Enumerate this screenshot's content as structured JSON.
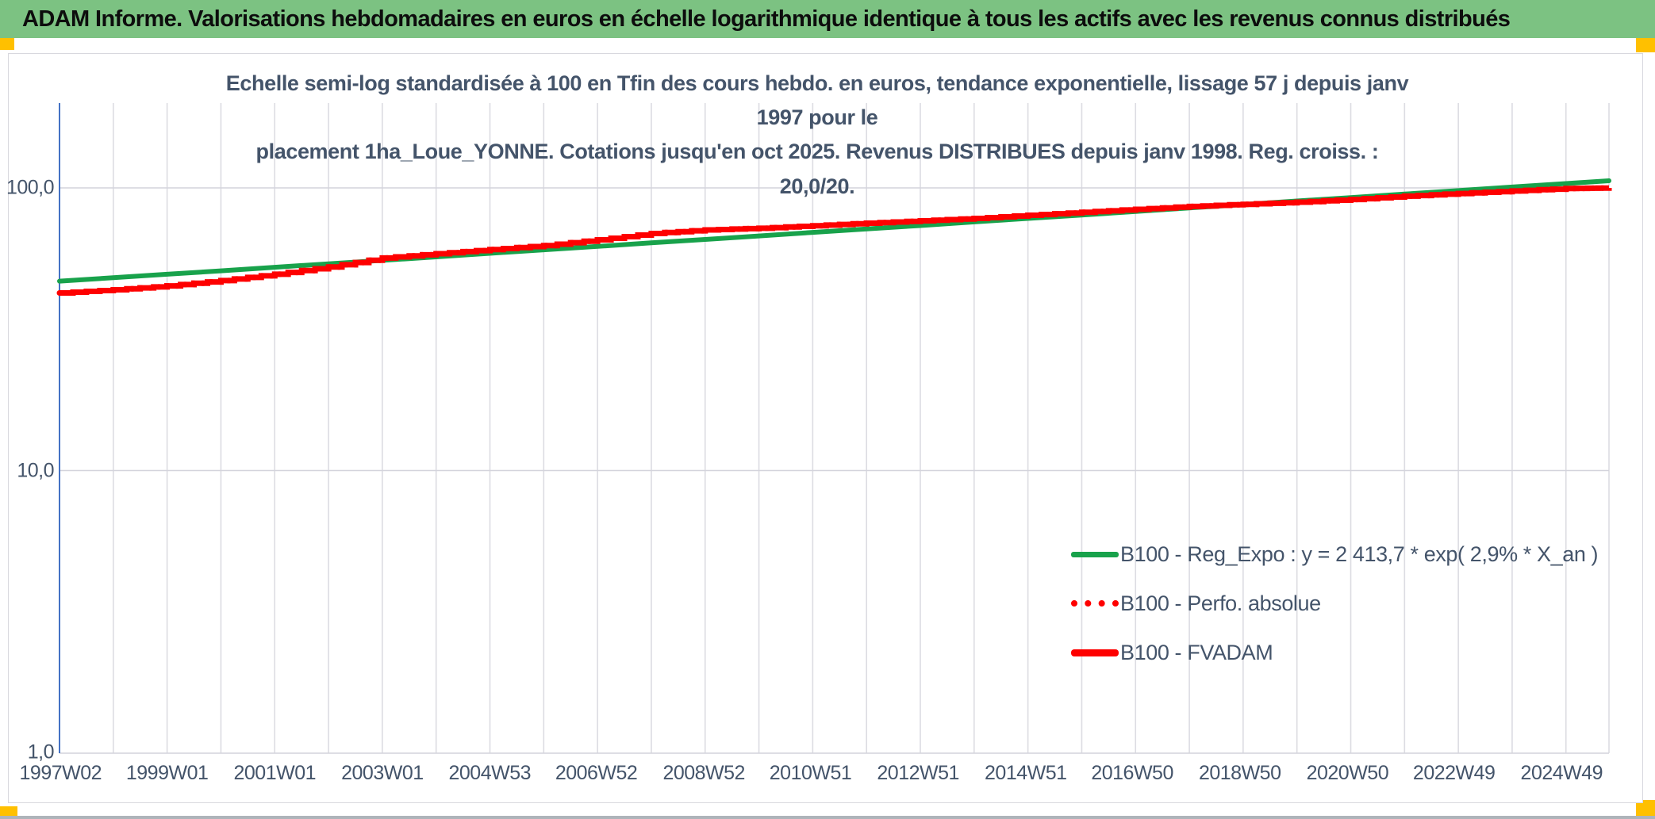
{
  "header": {
    "title": "ADAM Informe. Valorisations hebdomadaires en euros en échelle logarithmique identique à tous les actifs avec les revenus connus distribués"
  },
  "chart_data": {
    "type": "line",
    "title_lines": [
      "Echelle semi-log standardisée à 100 en Tfin des cours hebdo. en euros, tendance exponentielle, lissage 57 j depuis janv 1997 pour le",
      "placement 1ha_Loue_YONNE. Cotations jusqu'en oct 2025. Revenus DISTRIBUES depuis janv 1998. Reg. croiss. : 20,0/20."
    ],
    "y_scale": "log",
    "ylim": [
      1,
      200
    ],
    "y_tick_labels": [
      "100,0",
      "10,0",
      "1,0"
    ],
    "y_tick_values": [
      100.0,
      10.0,
      1.0
    ],
    "x_tick_labels": [
      "1997W02",
      "1999W01",
      "2001W01",
      "2003W01",
      "2004W53",
      "2006W52",
      "2008W52",
      "2010W51",
      "2012W51",
      "2014W51",
      "2016W50",
      "2018W50",
      "2020W50",
      "2022W49",
      "2024W49"
    ],
    "x_range_years": [
      1997.0,
      2025.8
    ],
    "grid": "vertical-yearly, horizontal-decades",
    "legend_position": "inside-bottom-right",
    "x_years": [
      1997,
      1998,
      1999,
      2000,
      2001,
      2002,
      2003,
      2004,
      2005,
      2006,
      2007,
      2008,
      2009,
      2010,
      2011,
      2012,
      2013,
      2014,
      2015,
      2016,
      2017,
      2018,
      2019,
      2020,
      2021,
      2022,
      2023,
      2024,
      2025,
      2025.8
    ],
    "series": [
      {
        "name": "B100 - Reg_Expo : y = 2 413,7 * exp( 2,9% *  X_an )",
        "color": "#18A24B",
        "style": "solid",
        "width": 6,
        "values": [
          46.8,
          48.1,
          49.5,
          50.9,
          52.4,
          53.9,
          55.4,
          57.0,
          58.7,
          60.4,
          62.1,
          63.9,
          65.7,
          67.6,
          69.6,
          71.6,
          73.6,
          75.8,
          78.0,
          80.2,
          82.5,
          84.9,
          87.3,
          89.9,
          92.4,
          95.1,
          97.8,
          100.7,
          103.6,
          106.0
        ]
      },
      {
        "name": "B100 - Perfo. absolue",
        "color": "#FE0000",
        "style": "dotted-step",
        "width": 7,
        "values": [
          42.5,
          43.6,
          45.0,
          47.0,
          49.5,
          52.5,
          56.5,
          58.5,
          60.5,
          62.5,
          65.5,
          69.0,
          71.0,
          72.0,
          73.5,
          75.0,
          76.5,
          78.0,
          80.0,
          82.0,
          84.0,
          86.0,
          87.5,
          89.0,
          91.0,
          93.5,
          95.5,
          97.5,
          99.5,
          100.0
        ]
      },
      {
        "name": "B100 - FVADAM",
        "color": "#FE0000",
        "style": "solid-step",
        "width": 7,
        "values": [
          42.5,
          43.6,
          45.0,
          47.0,
          49.5,
          52.5,
          56.5,
          58.5,
          60.5,
          62.5,
          65.5,
          69.0,
          71.0,
          72.0,
          73.5,
          75.0,
          76.5,
          78.0,
          80.0,
          82.0,
          84.0,
          86.0,
          87.5,
          89.0,
          91.0,
          93.5,
          95.5,
          97.5,
          99.5,
          100.0
        ]
      }
    ]
  },
  "colors": {
    "header_green": "#7CC282",
    "handle_gold": "#FFC000",
    "series_green": "#18A24B",
    "series_red": "#FE0000",
    "text_slate": "#44546A",
    "gridline": "#DCDCE2",
    "axis_blue": "#4472C4"
  }
}
